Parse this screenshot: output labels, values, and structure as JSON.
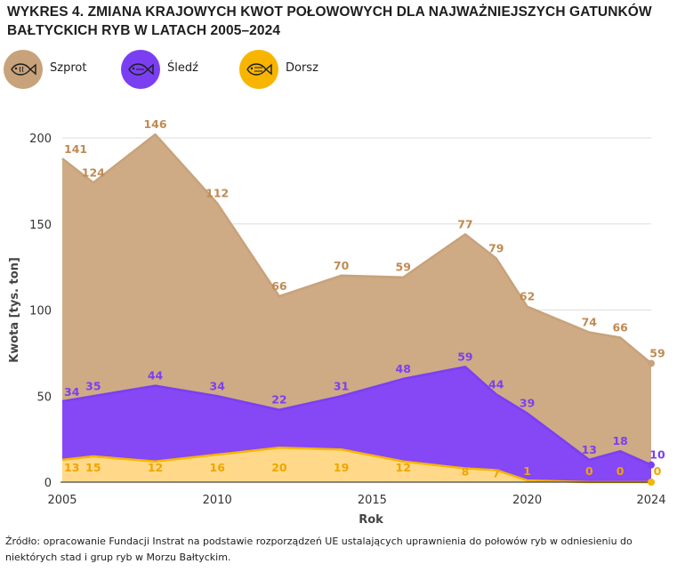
{
  "title": "WYKRES 4. ZMIANA KRAJOWYCH KWOT POŁOWOWYCH DLA NAJWAŻNIEJSZYCH GATUNKÓW BAŁTYCKICH RYB W LATACH 2005–2024",
  "legend": [
    {
      "name": "Szprot",
      "color": "#c8a27a",
      "icon": "fish-icon"
    },
    {
      "name": "Śledź",
      "color": "#7b3ff2",
      "icon": "fish-icon"
    },
    {
      "name": "Dorsz",
      "color": "#f7b500",
      "icon": "fish-icon"
    }
  ],
  "source": "Źródło: opracowanie Fundacji Instrat na podstawie rozporządzeń UE ustalających uprawnienia do połowów ryb w odniesieniu do niektórych stad i grup ryb w Morzu Bałtyckim.",
  "chart_data": {
    "type": "area",
    "stacked": true,
    "x": [
      2005,
      2006,
      2008,
      2010,
      2012,
      2014,
      2016,
      2018,
      2019,
      2020,
      2022,
      2023,
      2024
    ],
    "series": [
      {
        "name": "Dorsz",
        "values": [
          13,
          15,
          12,
          16,
          20,
          19,
          12,
          8,
          7,
          1,
          0,
          0,
          0
        ],
        "color": "#ffd989",
        "line": "#f7b500",
        "label_color": "#f0a500"
      },
      {
        "name": "Śledź",
        "values": [
          34,
          35,
          44,
          34,
          22,
          31,
          48,
          59,
          44,
          39,
          13,
          18,
          10
        ],
        "color": "#8647f5",
        "line": "#7b3ff2",
        "label_color": "#7b3ff2"
      },
      {
        "name": "Szprot",
        "values": [
          141,
          124,
          146,
          112,
          66,
          70,
          59,
          77,
          79,
          62,
          74,
          66,
          59
        ],
        "color": "#ceab84",
        "line": "#c8a27a",
        "label_color": "#c08a52"
      }
    ],
    "xlabel": "Rok",
    "ylabel": "Kwota [tys. ton]",
    "xticks": [
      2005,
      2010,
      2015,
      2020,
      2024
    ],
    "yticks": [
      0,
      50,
      100,
      150,
      200
    ],
    "xlim": [
      2005,
      2024
    ],
    "ylim": [
      0,
      200
    ],
    "grid": "horizontal"
  }
}
